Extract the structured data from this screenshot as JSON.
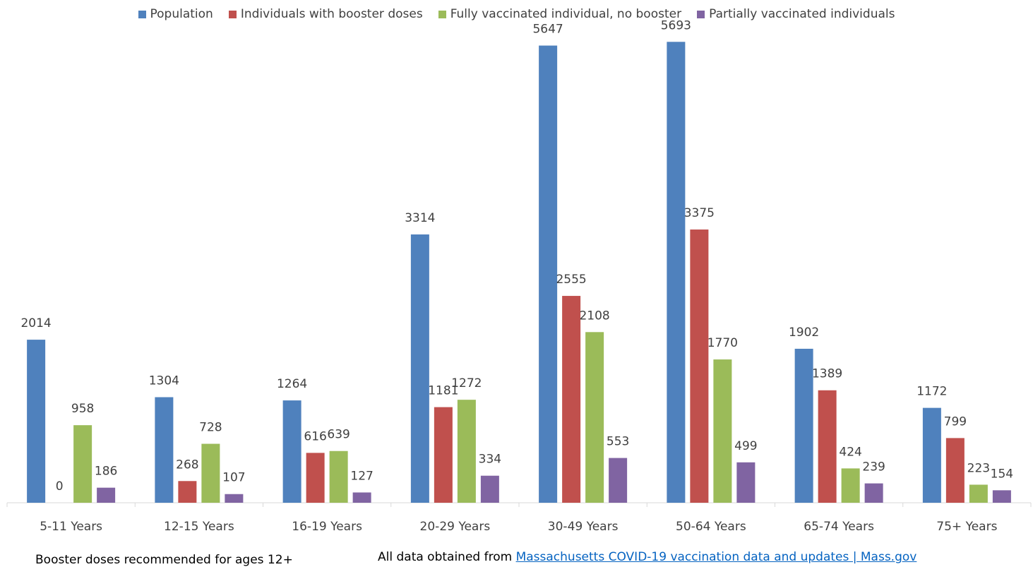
{
  "chart_data": {
    "type": "bar",
    "title": "",
    "xlabel": "",
    "ylabel": "",
    "ylim": [
      0,
      5800
    ],
    "legend_position": "top",
    "grid": false,
    "categories": [
      "5-11 Years",
      "12-15 Years",
      "16-19 Years",
      "20-29 Years",
      "30-49 Years",
      "50-64 Years",
      "65-74 Years",
      "75+ Years"
    ],
    "series": [
      {
        "name": "Population",
        "color": "#4f81bd",
        "values": [
          2014,
          1304,
          1264,
          3314,
          5647,
          5693,
          1902,
          1172
        ]
      },
      {
        "name": "Individuals with booster doses",
        "color": "#c0504d",
        "values": [
          0,
          268,
          616,
          1181,
          2555,
          3375,
          1389,
          799
        ]
      },
      {
        "name": "Fully vaccinated individual, no booster",
        "color": "#9bbb59",
        "values": [
          958,
          728,
          639,
          1272,
          2108,
          1770,
          424,
          223
        ]
      },
      {
        "name": "Partially vaccinated individuals",
        "color": "#8064a2",
        "values": [
          186,
          107,
          127,
          334,
          553,
          499,
          239,
          154
        ]
      }
    ]
  },
  "notes": {
    "booster": "Booster doses recommended for ages 12+",
    "source_prefix": "All data obtained from ",
    "source_link": "Massachusetts COVID-19 vaccination data and updates | Mass.gov"
  }
}
